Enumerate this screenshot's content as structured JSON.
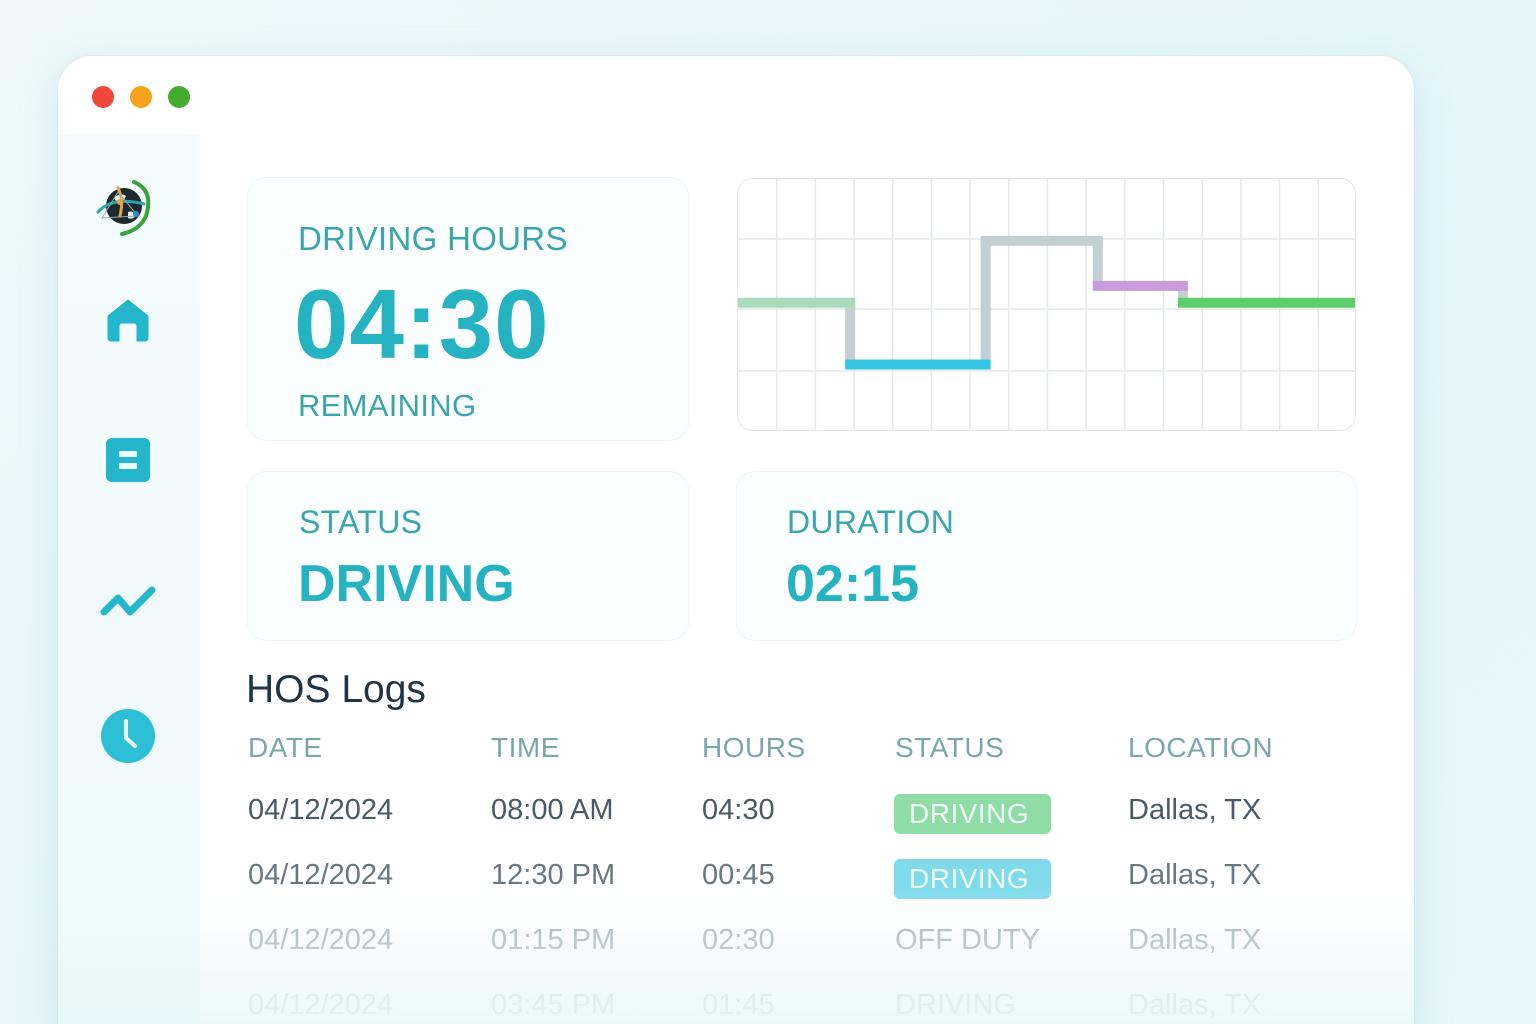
{
  "window": {
    "traffic_lights": [
      {
        "name": "close",
        "color": "#f0483b"
      },
      {
        "name": "minimize",
        "color": "#f7a21b"
      },
      {
        "name": "maximize",
        "color": "#46ab2e"
      }
    ]
  },
  "sidebar": {
    "logo": "globe-logo-icon",
    "items": [
      {
        "icon": "home-icon",
        "label": "Home"
      },
      {
        "icon": "logs-icon",
        "label": "Logs"
      },
      {
        "icon": "trend-icon",
        "label": "Analytics"
      },
      {
        "icon": "clock-icon",
        "label": "History"
      }
    ],
    "accent_color": "#23b6cc"
  },
  "driving_hours": {
    "label": "DRIVING HOURS",
    "value": "04:30",
    "sublabel": "REMAINING"
  },
  "status_card": {
    "label": "STATUS",
    "value": "DRIVING"
  },
  "duration_card": {
    "label": "DURATION",
    "value": "02:15"
  },
  "chart_data": {
    "type": "line",
    "title": "",
    "grid": true,
    "columns": 16,
    "rows": 4,
    "segments": [
      {
        "from_col": 0,
        "to_col": 2.9,
        "level": 2.3,
        "color": "#a8dcb9"
      },
      {
        "from_col": 2.9,
        "to_col": 6.4,
        "level": 1.2,
        "color": "#35c5e3"
      },
      {
        "from_col": 6.4,
        "to_col": 9.3,
        "level": 3.4,
        "color": "#c3d0d2"
      },
      {
        "from_col": 9.3,
        "to_col": 11.5,
        "level": 2.6,
        "color": "#c79bdc"
      },
      {
        "from_col": 11.5,
        "to_col": 16,
        "level": 2.3,
        "color": "#5fce6a"
      }
    ],
    "connector_color": "#c3d0d2"
  },
  "hos_logs": {
    "title": "HOS Logs",
    "columns": [
      "DATE",
      "TIME",
      "HOURS",
      "STATUS",
      "LOCATION"
    ],
    "rows": [
      {
        "date": "04/12/2024",
        "time": "08:00 AM",
        "hours": "04:30",
        "status": "DRIVING",
        "status_style": "badge-green",
        "location": "Dallas, TX"
      },
      {
        "date": "04/12/2024",
        "time": "12:30 PM",
        "hours": "00:45",
        "status": "DRIVING",
        "status_style": "badge-cyan",
        "location": "Dallas, TX"
      },
      {
        "date": "04/12/2024",
        "time": "01:15 PM",
        "hours": "02:30",
        "status": "OFF DUTY",
        "status_style": "plain",
        "location": "Dallas, TX"
      },
      {
        "date": "04/12/2024",
        "time": "03:45 PM",
        "hours": "01:45",
        "status": "DRIVING",
        "status_style": "plain",
        "location": "Dallas, TX"
      }
    ],
    "badge_colors": {
      "badge-green": "#8fdca6",
      "badge-cyan": "#7fdbea"
    }
  }
}
